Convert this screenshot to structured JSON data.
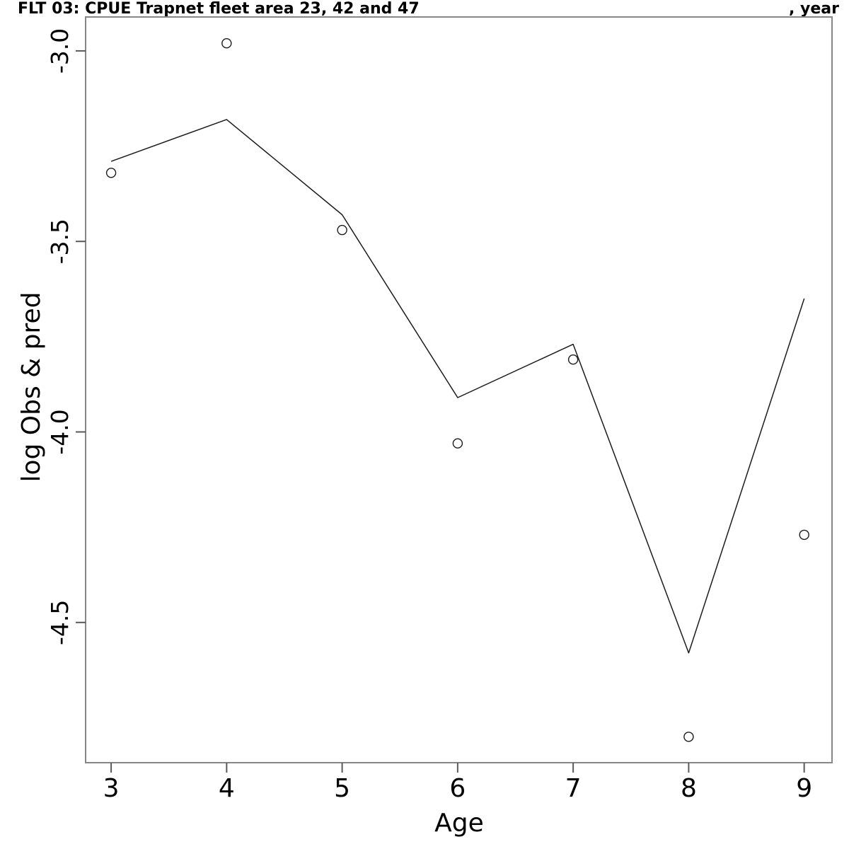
{
  "title": {
    "left": "FLT 03: CPUE Trapnet fleet area 23, 42 and 47",
    "right": ", year"
  },
  "chart_data": {
    "type": "line",
    "title": "FLT 03: CPUE Trapnet fleet area 23, 42 and 47",
    "title_suffix_right": ", year",
    "xlabel": "Age",
    "ylabel": "log Obs & pred",
    "x": [
      3,
      4,
      5,
      6,
      7,
      8,
      9
    ],
    "series": [
      {
        "name": "observed",
        "style": "points",
        "marker": "open-circle",
        "values": [
          -3.32,
          -2.98,
          -3.47,
          -4.03,
          -3.81,
          -4.8,
          -4.27
        ]
      },
      {
        "name": "predicted",
        "style": "line",
        "values": [
          -3.29,
          -3.18,
          -3.43,
          -3.91,
          -3.77,
          -4.58,
          -3.65
        ]
      }
    ],
    "x_ticks": [
      {
        "value": 3,
        "label": "3"
      },
      {
        "value": 4,
        "label": "4"
      },
      {
        "value": 5,
        "label": "5"
      },
      {
        "value": 6,
        "label": "6"
      },
      {
        "value": 7,
        "label": "7"
      },
      {
        "value": 8,
        "label": "8"
      },
      {
        "value": 9,
        "label": "9"
      }
    ],
    "y_ticks": [
      {
        "value": -3.0,
        "label": "-3.0"
      },
      {
        "value": -3.5,
        "label": "-3.5"
      },
      {
        "value": -4.0,
        "label": "-4.0"
      },
      {
        "value": -4.5,
        "label": "-4.5"
      }
    ],
    "x_domain": [
      2.779,
      9.241
    ],
    "y_domain": [
      -4.868,
      -2.911
    ],
    "grid": false,
    "legend": "none"
  },
  "colors": {
    "background": "#ffffff",
    "box": "#878787",
    "tick": "#5a5a5a",
    "data": "#1c1c1c",
    "text": "#000000"
  }
}
